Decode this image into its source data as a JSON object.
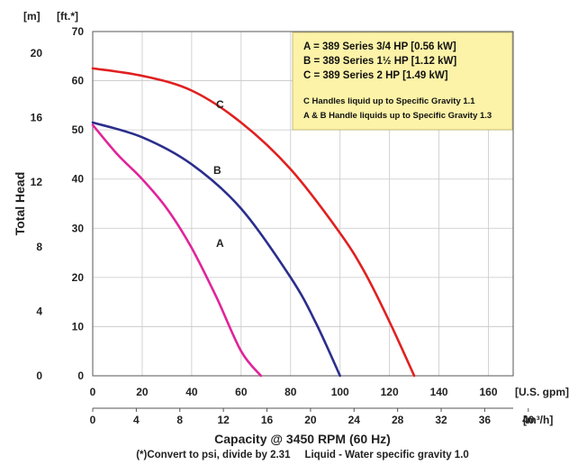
{
  "chart_data": {
    "type": "line",
    "title": "",
    "units": {
      "head_m": "[m]",
      "head_ft": "[ft.*]",
      "flow_gpm": "[U.S. gpm]",
      "flow_m3h": "[m³/h]"
    },
    "ylabel": "Total Head",
    "xlabel": "Capacity @ 3450 RPM (60 Hz)",
    "footnote": "(*)Convert to psi, divide by 2.31     Liquid - Water specific gravity 1.0",
    "x_gpm_ticks": [
      "0",
      "20",
      "40",
      "60",
      "80",
      "100",
      "120",
      "140",
      "160"
    ],
    "x_m3h_ticks": [
      "0",
      "4",
      "8",
      "12",
      "16",
      "20",
      "24",
      "28",
      "32",
      "36",
      "40"
    ],
    "y_ft_ticks": [
      "0",
      "10",
      "20",
      "30",
      "40",
      "50",
      "60",
      "70"
    ],
    "y_m_ticks": [
      "0",
      "4",
      "8",
      "12",
      "16",
      "20"
    ],
    "xlim_gpm": [
      0,
      170
    ],
    "ylim_ft": [
      0,
      70
    ],
    "grid": true,
    "series": [
      {
        "name": "A",
        "color": "#e0249a",
        "points": [
          [
            0,
            51
          ],
          [
            10,
            45
          ],
          [
            20,
            40
          ],
          [
            30,
            34
          ],
          [
            40,
            26
          ],
          [
            50,
            16
          ],
          [
            60,
            5
          ],
          [
            68,
            0
          ]
        ]
      },
      {
        "name": "B",
        "color": "#2b2e8c",
        "points": [
          [
            0,
            51.5
          ],
          [
            20,
            48.5
          ],
          [
            40,
            43
          ],
          [
            60,
            34
          ],
          [
            80,
            20
          ],
          [
            90,
            11
          ],
          [
            100,
            0
          ]
        ]
      },
      {
        "name": "C",
        "color": "#e02020",
        "points": [
          [
            0,
            62.5
          ],
          [
            20,
            61
          ],
          [
            40,
            58
          ],
          [
            60,
            51.5
          ],
          [
            80,
            42
          ],
          [
            100,
            29
          ],
          [
            110,
            21
          ],
          [
            120,
            11
          ],
          [
            130,
            0
          ]
        ]
      }
    ],
    "legend": {
      "position": "top-right",
      "background": "#fcf3a8",
      "lines": [
        "A = 389 Series 3/4 HP [0.56 kW]",
        "B = 389 Series 1½ HP [1.12 kW]",
        "C = 389 Series 2 HP [1.49 kW]"
      ],
      "notes": [
        "C Handles liquid up to Specific Gravity 1.1",
        "A & B Handle liquids up to Specific Gravity 1.3"
      ]
    }
  }
}
